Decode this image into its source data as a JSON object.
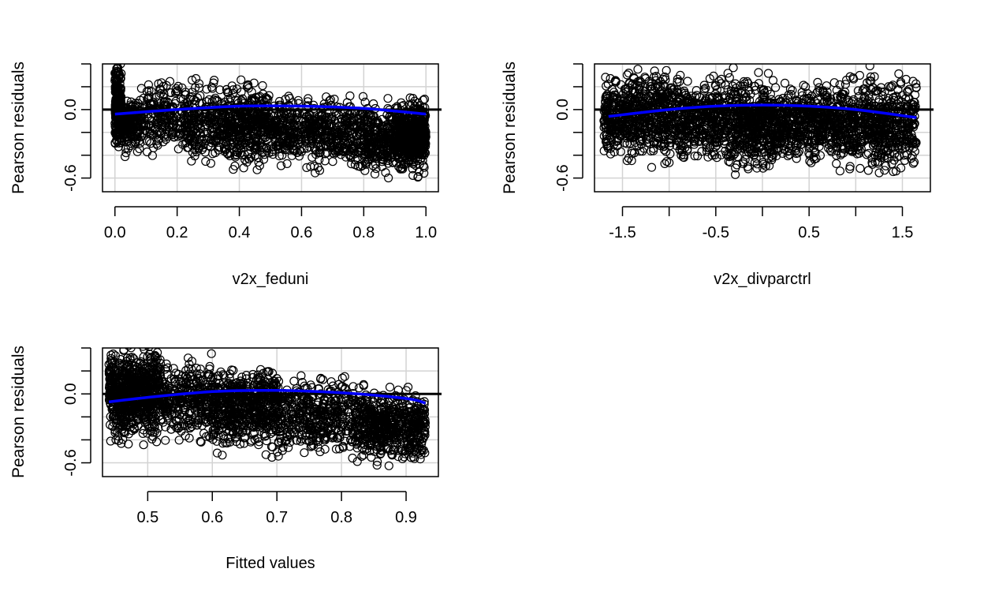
{
  "chart_data": [
    {
      "type": "scatter",
      "xlabel": "v2x_feduni",
      "ylabel": "Pearson residuals",
      "xlim": [
        -0.04,
        1.04
      ],
      "ylim": [
        -0.72,
        0.4
      ],
      "x_ticks": [
        0.0,
        0.2,
        0.4,
        0.6,
        0.8,
        1.0
      ],
      "x_tick_labels": [
        "0.0",
        "0.2",
        "0.4",
        "0.6",
        "0.8",
        "1.0"
      ],
      "y_ticks": [
        -0.6,
        -0.4,
        -0.2,
        0.0,
        0.2,
        0.4
      ],
      "y_tick_labels": [
        "-0.6",
        "",
        "",
        "0.0",
        "",
        ""
      ],
      "grid": true,
      "reference_line_y": 0,
      "point_count": 2600,
      "clusters": [
        {
          "x": [
            0.0,
            0.02
          ],
          "y": [
            -0.45,
            0.52
          ],
          "density": 0.1
        },
        {
          "x": [
            0.02,
            0.08
          ],
          "y": [
            -0.45,
            0.22
          ],
          "density": 0.06
        },
        {
          "x": [
            0.08,
            0.2
          ],
          "y": [
            -0.48,
            0.38
          ],
          "density": 0.07
        },
        {
          "x": [
            0.2,
            0.34
          ],
          "y": [
            -0.55,
            0.33
          ],
          "density": 0.09
        },
        {
          "x": [
            0.34,
            0.5
          ],
          "y": [
            -0.6,
            0.33
          ],
          "density": 0.16
        },
        {
          "x": [
            0.5,
            0.64
          ],
          "y": [
            -0.55,
            0.22
          ],
          "density": 0.1
        },
        {
          "x": [
            0.64,
            0.8
          ],
          "y": [
            -0.62,
            0.2
          ],
          "density": 0.11
        },
        {
          "x": [
            0.8,
            0.9
          ],
          "y": [
            -0.66,
            0.15
          ],
          "density": 0.09
        },
        {
          "x": [
            0.9,
            1.0
          ],
          "y": [
            -0.62,
            0.16
          ],
          "density": 0.22
        }
      ],
      "smooth_line": {
        "x": [
          0.0,
          0.2,
          0.4,
          0.6,
          0.8,
          1.0
        ],
        "y": [
          -0.04,
          0.0,
          0.03,
          0.03,
          0.01,
          -0.04
        ],
        "color": "#0000ff"
      }
    },
    {
      "type": "scatter",
      "xlabel": "v2x_divparctrl",
      "ylabel": "Pearson residuals",
      "xlim": [
        -1.8,
        1.8
      ],
      "ylim": [
        -0.72,
        0.4
      ],
      "x_ticks": [
        -1.5,
        -1.0,
        -0.5,
        0.0,
        0.5,
        1.0,
        1.5
      ],
      "x_tick_labels": [
        "-1.5",
        "",
        "-0.5",
        "",
        "0.5",
        "",
        "1.5"
      ],
      "y_ticks": [
        -0.6,
        -0.4,
        -0.2,
        0.0,
        0.2,
        0.4
      ],
      "y_tick_labels": [
        "-0.6",
        "",
        "",
        "0.0",
        "",
        ""
      ],
      "grid": true,
      "reference_line_y": 0,
      "point_count": 2600,
      "clusters": [
        {
          "x": [
            -1.7,
            -0.9
          ],
          "y": [
            -0.55,
            0.45
          ],
          "density": 0.24
        },
        {
          "x": [
            -0.9,
            -0.4
          ],
          "y": [
            -0.55,
            0.35
          ],
          "density": 0.14
        },
        {
          "x": [
            -0.4,
            0.1
          ],
          "y": [
            -0.65,
            0.4
          ],
          "density": 0.18
        },
        {
          "x": [
            0.1,
            0.8
          ],
          "y": [
            -0.55,
            0.32
          ],
          "density": 0.2
        },
        {
          "x": [
            0.8,
            1.65
          ],
          "y": [
            -0.65,
            0.42
          ],
          "density": 0.24
        }
      ],
      "smooth_line": {
        "x": [
          -1.65,
          -1.0,
          -0.5,
          0.0,
          0.5,
          1.0,
          1.65
        ],
        "y": [
          -0.06,
          0.0,
          0.03,
          0.04,
          0.03,
          0.0,
          -0.07
        ],
        "color": "#0000ff"
      }
    },
    {
      "type": "scatter",
      "xlabel": "Fitted values",
      "ylabel": "Pearson residuals",
      "xlim": [
        0.43,
        0.95
      ],
      "ylim": [
        -0.72,
        0.4
      ],
      "x_ticks": [
        0.5,
        0.6,
        0.7,
        0.8,
        0.9
      ],
      "x_tick_labels": [
        "0.5",
        "0.6",
        "0.7",
        "0.8",
        "0.9"
      ],
      "y_ticks": [
        -0.6,
        -0.4,
        -0.2,
        0.0,
        0.2,
        0.4
      ],
      "y_tick_labels": [
        "-0.6",
        "",
        "",
        "0.0",
        "",
        ""
      ],
      "grid": true,
      "reference_line_y": 0,
      "point_count": 2600,
      "clusters": [
        {
          "x": [
            0.44,
            0.52
          ],
          "y": [
            -0.5,
            0.52
          ],
          "density": 0.28
        },
        {
          "x": [
            0.52,
            0.6
          ],
          "y": [
            -0.5,
            0.38
          ],
          "density": 0.12
        },
        {
          "x": [
            0.6,
            0.7
          ],
          "y": [
            -0.58,
            0.33
          ],
          "density": 0.22
        },
        {
          "x": [
            0.7,
            0.82
          ],
          "y": [
            -0.62,
            0.22
          ],
          "density": 0.16
        },
        {
          "x": [
            0.82,
            0.93
          ],
          "y": [
            -0.68,
            0.14
          ],
          "density": 0.22
        }
      ],
      "smooth_line": {
        "x": [
          0.44,
          0.5,
          0.6,
          0.7,
          0.8,
          0.9,
          0.93
        ],
        "y": [
          -0.07,
          -0.03,
          0.02,
          0.03,
          0.01,
          -0.04,
          -0.08
        ],
        "color": "#0000ff"
      }
    }
  ]
}
